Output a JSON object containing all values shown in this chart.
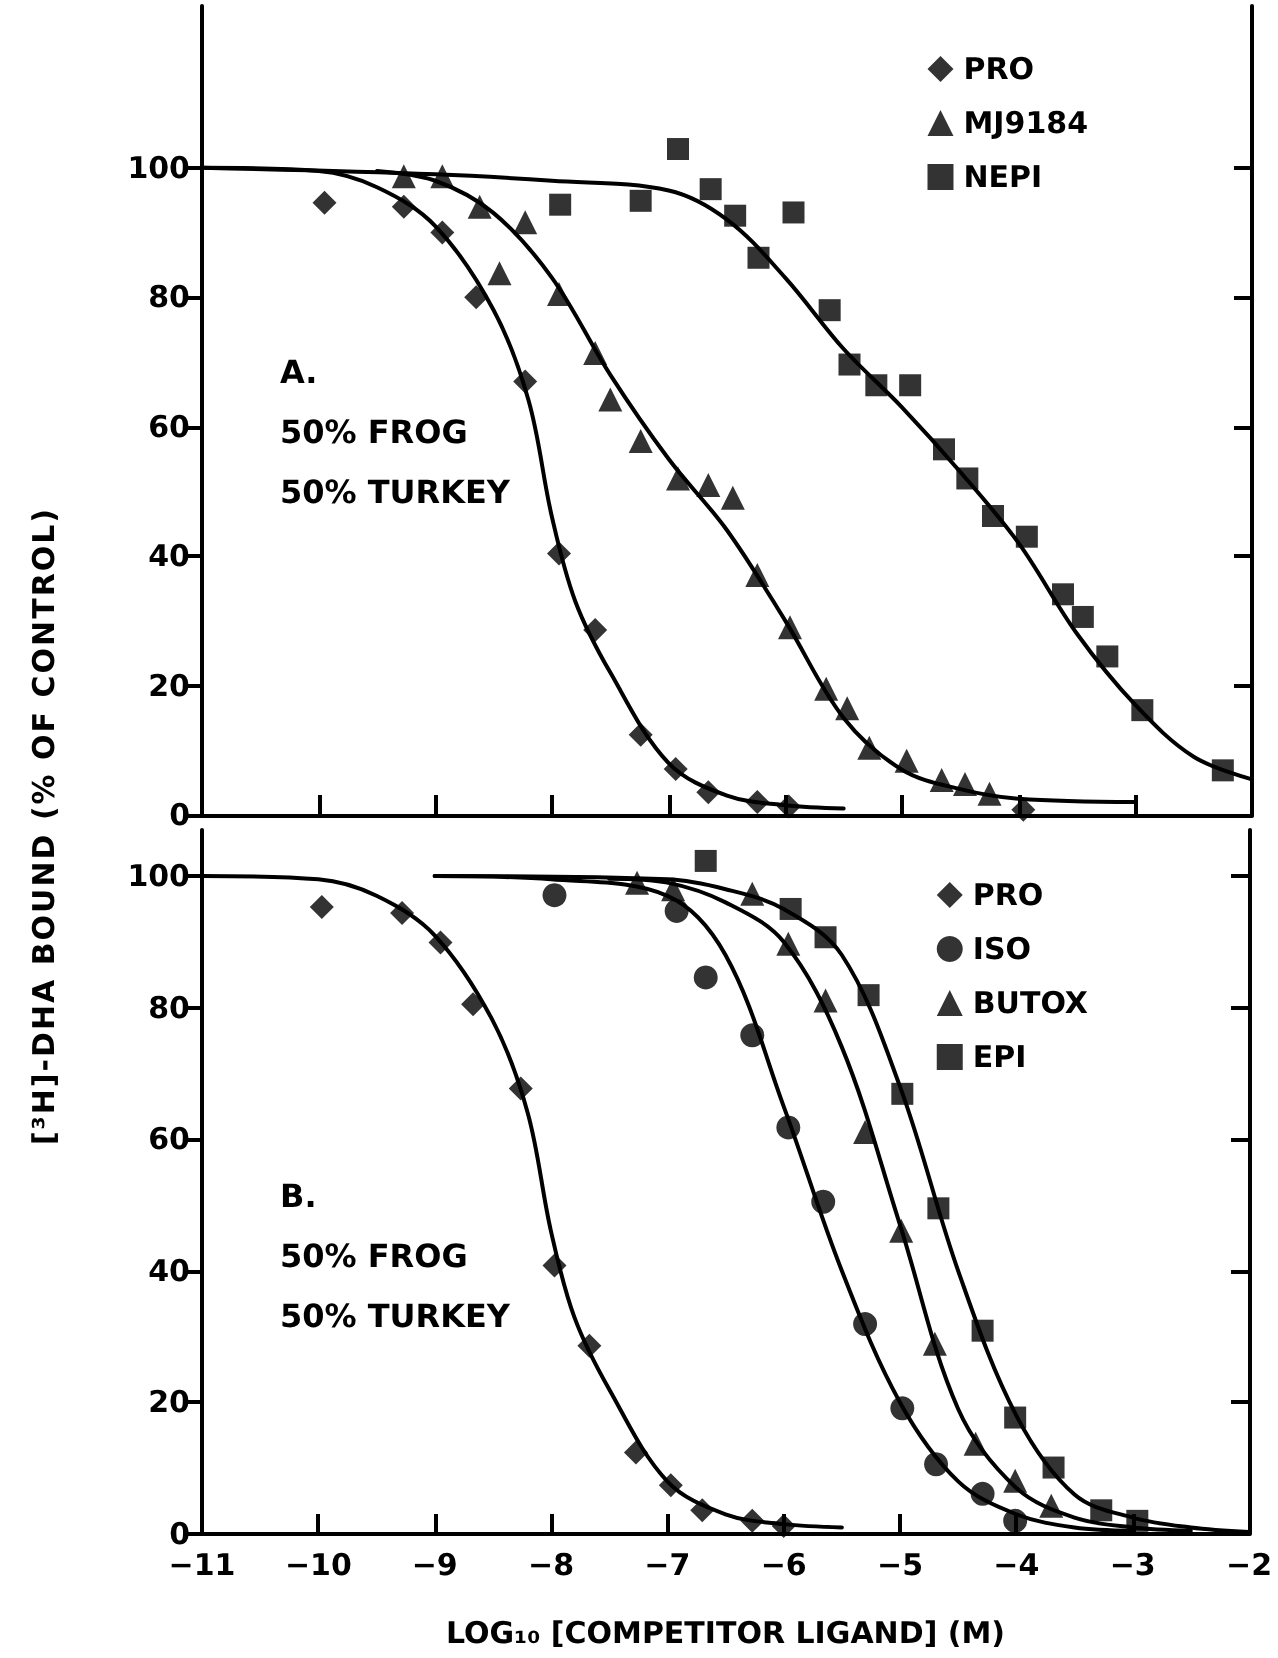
{
  "chart_data": [
    {
      "type": "scatter",
      "ylabel": "[³H]-DHA BOUND (% OF CONTROL)",
      "annotations": [
        "A.",
        "50% FROG",
        "50% TURKEY"
      ],
      "legend": "top right",
      "tick_labels": "y",
      "xlim": [
        -11,
        -2
      ],
      "xticks": [
        -11,
        -10,
        -9,
        -8,
        -7,
        -6,
        -5,
        -4,
        -3,
        -2
      ],
      "ylim": [
        0,
        125
      ],
      "yticks": [
        0,
        20,
        40,
        60,
        80,
        100
      ],
      "series": [
        {
          "name": "PRO",
          "color": "#000000",
          "marker": "diamond",
          "x": [
            -9.95,
            -9.27,
            -8.94,
            -8.65,
            -8.23,
            -7.94,
            -7.63,
            -7.24,
            -6.94,
            -6.66,
            -6.24,
            -5.97,
            -3.96
          ],
          "values": [
            94.6,
            94,
            90,
            80,
            67,
            40.4,
            28.6,
            12.4,
            7.1,
            3.5,
            2,
            1.3,
            0.8
          ]
        },
        {
          "name": "MJ9184",
          "color": "#000000",
          "marker": "triangle",
          "x": [
            -9.27,
            -8.94,
            -8.62,
            -8.23,
            -8.45,
            -7.94,
            -7.63,
            -7.5,
            -7.24,
            -6.92,
            -6.66,
            -6.45,
            -6.24,
            -5.96,
            -5.65,
            -5.47,
            -5.28,
            -4.96,
            -4.66,
            -4.46,
            -4.25
          ],
          "values": [
            98.7,
            98.7,
            94,
            91.6,
            83.7,
            80.5,
            71.4,
            64.2,
            57.8,
            52,
            51,
            49,
            37.1,
            29,
            19.5,
            16.5,
            10.4,
            8.4,
            5.4,
            4.8,
            3.3
          ]
        },
        {
          "name": "NEPI",
          "color": "#000000",
          "marker": "square",
          "x": [
            -7.93,
            -7.24,
            -6.92,
            -6.64,
            -6.43,
            -6.23,
            -5.93,
            -5.62,
            -5.45,
            -5.22,
            -4.93,
            -4.64,
            -4.44,
            -4.22,
            -3.93,
            -3.62,
            -3.45,
            -3.24,
            -2.94,
            -2.25
          ],
          "values": [
            94.3,
            94.9,
            102.9,
            96.7,
            92.6,
            86.1,
            93.1,
            78,
            69.6,
            66.4,
            66.4,
            56.5,
            52,
            46.2,
            43,
            34.1,
            30.6,
            24.5,
            16.2,
            6.9
          ]
        },
        {
          "type": "line",
          "color": "#000000",
          "marker": "none",
          "line_style": "solid",
          "x": [
            -11,
            -10,
            -9.5,
            -9,
            -8.5,
            -8.2,
            -8,
            -7.8,
            -7.5,
            -7,
            -6.5,
            -6,
            -5.5
          ],
          "values": [
            100,
            99.5,
            97,
            91,
            78,
            64,
            46,
            33,
            22,
            8,
            3,
            1.5,
            1
          ]
        },
        {
          "type": "line",
          "color": "#000000",
          "marker": "none",
          "line_style": "solid",
          "x": [
            -9.5,
            -9,
            -8.5,
            -8,
            -7.5,
            -7,
            -6.5,
            -6,
            -5.5,
            -5,
            -4.5,
            -4,
            -3
          ],
          "values": [
            99.5,
            98,
            93,
            83,
            68,
            55,
            44,
            30,
            15,
            7,
            4,
            2.5,
            2
          ]
        },
        {
          "type": "line",
          "color": "#000000",
          "marker": "none",
          "line_style": "solid",
          "x": [
            -11,
            -9,
            -8,
            -7,
            -6.5,
            -6,
            -5.5,
            -5,
            -4.5,
            -4,
            -3.5,
            -3,
            -2.5,
            -2
          ],
          "values": [
            100,
            99,
            98,
            96.5,
            92,
            83,
            72,
            63,
            53,
            42,
            28,
            17,
            9,
            5.5
          ]
        }
      ]
    },
    {
      "type": "scatter",
      "xlabel": "LOG₁₀ [COMPETITOR LIGAND] (M)",
      "annotations": [
        "B.",
        "50% FROG",
        "50% TURKEY"
      ],
      "legend": "top right",
      "xlim": [
        -11,
        -2
      ],
      "xticks": [
        -11,
        -10,
        -9,
        -8,
        -7,
        -6,
        -5,
        -4,
        -3,
        -2
      ],
      "ylim": [
        0,
        107
      ],
      "yticks": [
        0,
        20,
        40,
        60,
        80,
        100
      ],
      "series": [
        {
          "name": "PRO",
          "color": "#000000",
          "marker": "diamond",
          "x": [
            -9.97,
            -9.28,
            -8.95,
            -8.67,
            -8.26,
            -7.97,
            -7.67,
            -7.27,
            -6.97,
            -6.7,
            -6.27,
            -6
          ],
          "values": [
            95.3,
            94.4,
            89.9,
            80.5,
            67.7,
            40.8,
            28.6,
            12.4,
            7.4,
            3.6,
            2,
            1.2
          ]
        },
        {
          "name": "ISO",
          "color": "#000000",
          "marker": "circle",
          "x": [
            -7.97,
            -6.92,
            -6.67,
            -6.27,
            -5.96,
            -5.66,
            -5.3,
            -4.98,
            -4.69,
            -4.29,
            -4.01
          ],
          "values": [
            97.1,
            94.7,
            84.6,
            75.8,
            61.8,
            50.5,
            31.9,
            19.1,
            10.6,
            6.1,
            2
          ]
        },
        {
          "name": "BUTOX",
          "color": "#000000",
          "marker": "triangle",
          "x": [
            -7.26,
            -6.95,
            -6.27,
            -5.96,
            -5.64,
            -5.3,
            -4.99,
            -4.7,
            -4.35,
            -4.01,
            -3.7
          ],
          "values": [
            99,
            98,
            97.3,
            89.7,
            81.1,
            61.1,
            46.1,
            28.9,
            13.7,
            8.1,
            4.3
          ]
        },
        {
          "name": "EPI",
          "color": "#000000",
          "marker": "square",
          "x": [
            -6.67,
            -5.94,
            -5.64,
            -5.27,
            -4.98,
            -4.67,
            -4.29,
            -4.01,
            -3.68,
            -3.27,
            -2.96
          ],
          "values": [
            102.3,
            95,
            90.7,
            81.9,
            66.9,
            49.5,
            30.9,
            17.7,
            10.1,
            3.6,
            2
          ]
        },
        {
          "type": "line",
          "color": "#000000",
          "marker": "none",
          "line_style": "solid",
          "x": [
            -11,
            -10,
            -9.5,
            -9,
            -8.5,
            -8.2,
            -8,
            -7.8,
            -7.5,
            -7,
            -6.5,
            -6,
            -5.5
          ],
          "values": [
            100,
            99.5,
            97,
            91,
            78,
            64,
            46,
            33,
            22,
            8,
            3,
            1.5,
            1
          ]
        },
        {
          "type": "line",
          "color": "#000000",
          "marker": "none",
          "line_style": "solid",
          "x": [
            -9,
            -8,
            -7,
            -6.5,
            -6,
            -5.5,
            -5,
            -4.5,
            -4,
            -3.5,
            -3
          ],
          "values": [
            100,
            99.5,
            97,
            88,
            65,
            40,
            20,
            8,
            3,
            1,
            0.5
          ]
        },
        {
          "type": "line",
          "color": "#000000",
          "marker": "none",
          "line_style": "solid",
          "x": [
            -7.5,
            -7,
            -6.5,
            -6,
            -5.5,
            -5,
            -4.5,
            -4,
            -3.5,
            -3,
            -2.5
          ],
          "values": [
            99.6,
            99,
            96,
            90,
            74,
            47,
            19,
            7,
            2.5,
            1,
            0.5
          ]
        },
        {
          "type": "line",
          "color": "#000000",
          "marker": "none",
          "line_style": "solid",
          "x": [
            -9,
            -7,
            -6.5,
            -6,
            -5.5,
            -5,
            -4.5,
            -4,
            -3.5,
            -3,
            -2.5,
            -2
          ],
          "values": [
            100,
            99.5,
            98,
            95,
            88,
            68,
            40,
            18,
            6,
            2.5,
            1,
            0.3
          ]
        }
      ]
    }
  ]
}
